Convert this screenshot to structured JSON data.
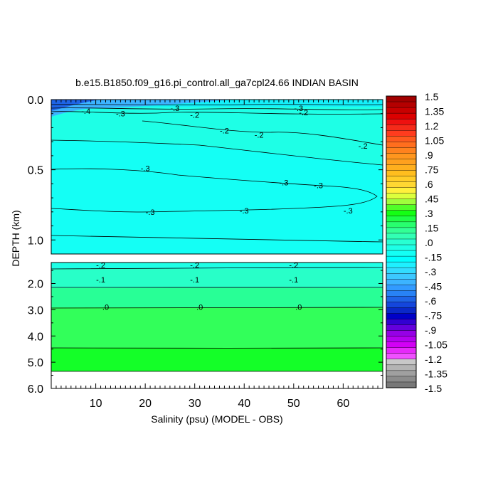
{
  "chart_data": {
    "type": "contour",
    "title": "b.e15.B1850.f09_g16.pi_control.all_ga7cpl24.66 INDIAN BASIN",
    "xlabel": "Salinity (psu) (MODEL - OBS)",
    "ylabel": "DEPTH (km)",
    "xlim": [
      1,
      68
    ],
    "x_ticks": [
      "10",
      "20",
      "30",
      "40",
      "50",
      "60"
    ],
    "upper_panel": {
      "ylim": [
        0.0,
        1.1
      ],
      "y_ticks": [
        "0.0",
        "0.5",
        "1.0"
      ],
      "contour_labels": [
        {
          "text": "-.4",
          "x": 8,
          "depth": 0.08
        },
        {
          "text": "-.3",
          "x": 15,
          "depth": 0.1
        },
        {
          "text": "-.3",
          "x": 26,
          "depth": 0.06
        },
        {
          "text": "-.2",
          "x": 30,
          "depth": 0.11
        },
        {
          "text": "-.3",
          "x": 51,
          "depth": 0.06
        },
        {
          "text": "-.2",
          "x": 52,
          "depth": 0.09
        },
        {
          "text": "-.2",
          "x": 36,
          "depth": 0.22
        },
        {
          "text": "-.2",
          "x": 43,
          "depth": 0.25
        },
        {
          "text": "-.2",
          "x": 64,
          "depth": 0.33
        },
        {
          "text": "-.3",
          "x": 20,
          "depth": 0.49
        },
        {
          "text": "-.3",
          "x": 48,
          "depth": 0.59
        },
        {
          "text": "-.3",
          "x": 55,
          "depth": 0.61
        },
        {
          "text": "-.3",
          "x": 21,
          "depth": 0.8
        },
        {
          "text": "-.3",
          "x": 40,
          "depth": 0.79
        },
        {
          "text": "-.3",
          "x": 61,
          "depth": 0.79
        }
      ]
    },
    "lower_panel": {
      "ylim": [
        1.2,
        6.0
      ],
      "y_ticks": [
        "2.0",
        "3.0",
        "4.0",
        "5.0",
        "6.0"
      ],
      "contour_labels": [
        {
          "text": "-.2",
          "x": 11,
          "depth": 1.3
        },
        {
          "text": "-.2",
          "x": 30,
          "depth": 1.3
        },
        {
          "text": "-.2",
          "x": 50,
          "depth": 1.3
        },
        {
          "text": "-.1",
          "x": 11,
          "depth": 1.85
        },
        {
          "text": "-.1",
          "x": 30,
          "depth": 1.85
        },
        {
          "text": "-.1",
          "x": 50,
          "depth": 1.85
        },
        {
          "text": ".0",
          "x": 12,
          "depth": 2.9
        },
        {
          "text": ".0",
          "x": 31,
          "depth": 2.9
        },
        {
          "text": ".0",
          "x": 51,
          "depth": 2.9
        }
      ]
    },
    "colorbar": {
      "labels": [
        "1.5",
        "1.35",
        "1.2",
        "1.05",
        ".9",
        ".75",
        ".6",
        ".45",
        ".3",
        ".15",
        ".0",
        "-.15",
        "-.3",
        "-.45",
        "-.6",
        "-.75",
        "-.9",
        "-1.05",
        "-1.2",
        "-1.35",
        "-1.5"
      ],
      "colors_top_to_bottom": [
        "#a10000",
        "#b40000",
        "#c80000",
        "#dc0000",
        "#ee1010",
        "#f52a1a",
        "#ff3c1e",
        "#ff5a1e",
        "#ff6e1e",
        "#ff821e",
        "#ff961e",
        "#ffa01e",
        "#ffaf1e",
        "#ffbe1e",
        "#ffcd28",
        "#ffd732",
        "#fff03c",
        "#dcff3c",
        "#a0ff3c",
        "#50ff28",
        "#14ff14",
        "#1eff46",
        "#28ff6e",
        "#32ff96",
        "#32ffb4",
        "#28ffd2",
        "#1effe6",
        "#14fff5",
        "#00ffff",
        "#1ef0ff",
        "#32dcff",
        "#3cc8ff",
        "#3cb4ff",
        "#329bff",
        "#2882f5",
        "#1e64e6",
        "#1446dc",
        "#0a28c8",
        "#0000c8",
        "#3200d2",
        "#6400dc",
        "#9600e6",
        "#b400f0",
        "#d200f5",
        "#e628fa",
        "#f050ff",
        "#c8c8c8",
        "#b4b4b4",
        "#a0a0a0",
        "#8c8c8c",
        "#787878"
      ]
    },
    "fill_colors": {
      "surface_dark": "#1e64e6",
      "surface_mid": "#3cb4ff",
      "cyan": "#14fff5",
      "aqua": "#1effe6",
      "teal_green": "#28ffc8",
      "mint": "#28ff96",
      "green": "#32ff5a",
      "bright_green": "#14ff28"
    },
    "grid": false,
    "legend": "colorbar-right"
  }
}
